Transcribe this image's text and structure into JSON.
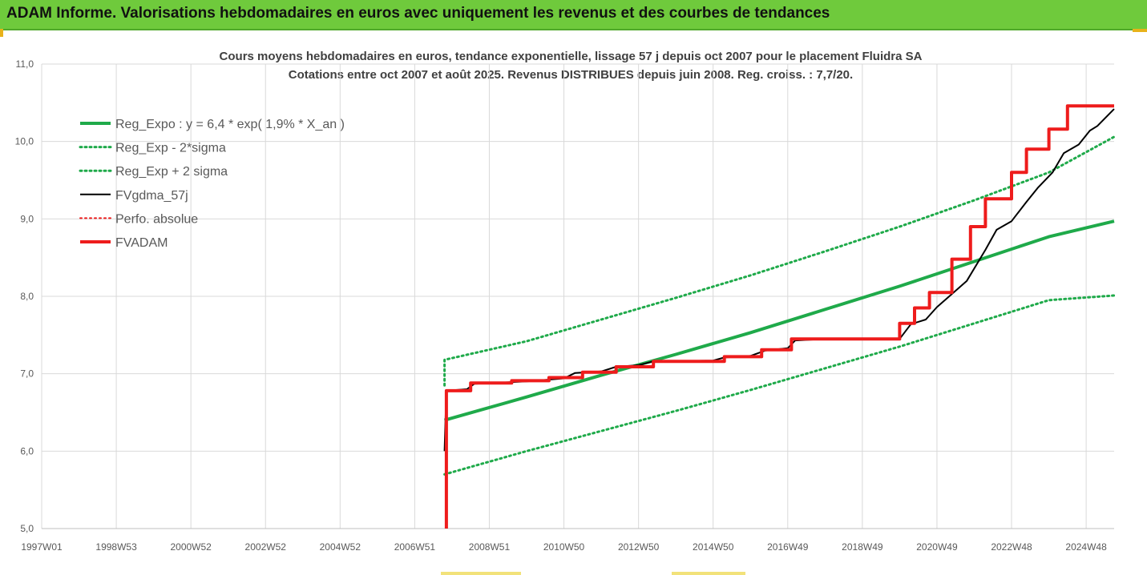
{
  "banner": {
    "title": "ADAM Informe. Valorisations hebdomadaires en euros avec uniquement les revenus et des courbes de tendances"
  },
  "chart_data": {
    "type": "line",
    "title": "Cours moyens hebdomadaires en euros, tendance exponentielle, lissage 57 j depuis oct 2007 pour le placement Fluidra SA",
    "subtitle": "Cotations entre oct 2007 et août 2025.  Revenus DISTRIBUES depuis juin 2008. Reg. croiss. : 7,7/20.",
    "xlabel": "",
    "ylabel": "",
    "ylim": [
      5.0,
      11.0
    ],
    "xlim": [
      1997.0,
      2025.75
    ],
    "y_ticks": [
      "5,0",
      "6,0",
      "7,0",
      "8,0",
      "9,0",
      "10,0",
      "11,0"
    ],
    "y_tick_values": [
      5,
      6,
      7,
      8,
      9,
      10,
      11
    ],
    "x_tick_labels": [
      "1997W01",
      "1998W53",
      "2000W52",
      "2002W52",
      "2004W52",
      "2006W51",
      "2008W51",
      "2010W50",
      "2012W50",
      "2014W50",
      "2016W49",
      "2018W49",
      "2020W49",
      "2022W48",
      "2024W48"
    ],
    "x_tick_values": [
      1997.0,
      1999.0,
      2001.0,
      2003.0,
      2005.0,
      2007.0,
      2009.0,
      2011.0,
      2013.0,
      2015.0,
      2017.0,
      2019.0,
      2021.0,
      2023.0,
      2025.0
    ],
    "grid": true,
    "legend_position": "top-left",
    "colors": {
      "green": "#1faa4a",
      "black": "#000000",
      "red": "#ee1c1c",
      "grid": "#d9d9d9",
      "axis_text": "#595959",
      "title_text": "#404040"
    },
    "series": [
      {
        "name": "Reg_Expo : y = 6,4 * exp( 1,9% *  X_an )",
        "color": "#1faa4a",
        "style": "solid",
        "x": [
          2007.8,
          2010.0,
          2012.0,
          2014.0,
          2016.0,
          2018.0,
          2020.0,
          2022.0,
          2024.0,
          2025.75
        ],
        "y": [
          6.4,
          6.7,
          6.98,
          7.25,
          7.53,
          7.83,
          8.13,
          8.45,
          8.77,
          8.97
        ]
      },
      {
        "name": "Reg_Exp - 2*sigma",
        "color": "#1faa4a",
        "style": "dotted",
        "x": [
          2007.8,
          2010.0,
          2012.0,
          2014.0,
          2016.0,
          2018.0,
          2020.0,
          2022.0,
          2024.0,
          2025.75
        ],
        "y": [
          5.7,
          6.0,
          6.26,
          6.52,
          6.79,
          7.07,
          7.35,
          7.65,
          7.95,
          8.01
        ]
      },
      {
        "name": "Reg_Exp + 2 sigma",
        "color": "#1faa4a",
        "style": "dotted",
        "x": [
          2007.8,
          2007.8,
          2010.0,
          2012.0,
          2014.0,
          2016.0,
          2018.0,
          2020.0,
          2022.0,
          2024.0,
          2025.75
        ],
        "y": [
          6.85,
          7.18,
          7.42,
          7.7,
          7.98,
          8.27,
          8.58,
          8.9,
          9.24,
          9.6,
          10.06
        ]
      },
      {
        "name": "FVgdma_57j",
        "color": "#000000",
        "style": "solid",
        "x": [
          2007.8,
          2007.85,
          2008.4,
          2008.6,
          2010.0,
          2011.0,
          2011.3,
          2012.0,
          2012.4,
          2013.0,
          2013.4,
          2015.0,
          2015.3,
          2016.0,
          2016.4,
          2017.0,
          2017.2,
          2018.0,
          2020.0,
          2020.3,
          2020.7,
          2021.0,
          2021.4,
          2021.8,
          2022.3,
          2022.6,
          2023.0,
          2023.4,
          2023.7,
          2024.1,
          2024.4,
          2024.8,
          2025.1,
          2025.3,
          2025.75
        ],
        "y": [
          6.0,
          6.78,
          6.8,
          6.87,
          6.9,
          6.94,
          7.01,
          7.03,
          7.09,
          7.11,
          7.16,
          7.17,
          7.21,
          7.23,
          7.3,
          7.33,
          7.43,
          7.45,
          7.45,
          7.64,
          7.7,
          7.86,
          8.03,
          8.2,
          8.6,
          8.86,
          8.97,
          9.22,
          9.4,
          9.6,
          9.85,
          9.96,
          10.14,
          10.2,
          10.42
        ]
      },
      {
        "name": "Perfo. absolue",
        "color": "#ee1c1c",
        "style": "dotted",
        "x": [],
        "y": []
      },
      {
        "name": "FVADAM",
        "color": "#ee1c1c",
        "style": "solid",
        "x": [
          2007.85,
          2007.85,
          2007.85,
          2008.5,
          2008.5,
          2009.6,
          2009.6,
          2010.6,
          2010.6,
          2011.5,
          2011.5,
          2012.4,
          2012.4,
          2013.4,
          2013.4,
          2015.3,
          2015.3,
          2016.3,
          2016.3,
          2017.1,
          2017.1,
          2020.0,
          2020.0,
          2020.4,
          2020.4,
          2020.8,
          2020.8,
          2021.4,
          2021.4,
          2021.9,
          2021.9,
          2022.3,
          2022.3,
          2023.0,
          2023.0,
          2023.4,
          2023.4,
          2024.0,
          2024.0,
          2024.5,
          2024.5,
          2025.1,
          2025.1,
          2025.75
        ],
        "y": [
          5.0,
          6.78,
          6.78,
          6.78,
          6.88,
          6.88,
          6.91,
          6.91,
          6.95,
          6.95,
          7.02,
          7.02,
          7.09,
          7.09,
          7.16,
          7.16,
          7.22,
          7.22,
          7.31,
          7.31,
          7.45,
          7.45,
          7.65,
          7.65,
          7.85,
          7.85,
          8.05,
          8.05,
          8.48,
          8.48,
          8.9,
          8.9,
          9.26,
          9.26,
          9.6,
          9.6,
          9.9,
          9.9,
          10.16,
          10.16,
          10.46,
          10.46,
          10.46,
          10.46
        ]
      }
    ]
  }
}
